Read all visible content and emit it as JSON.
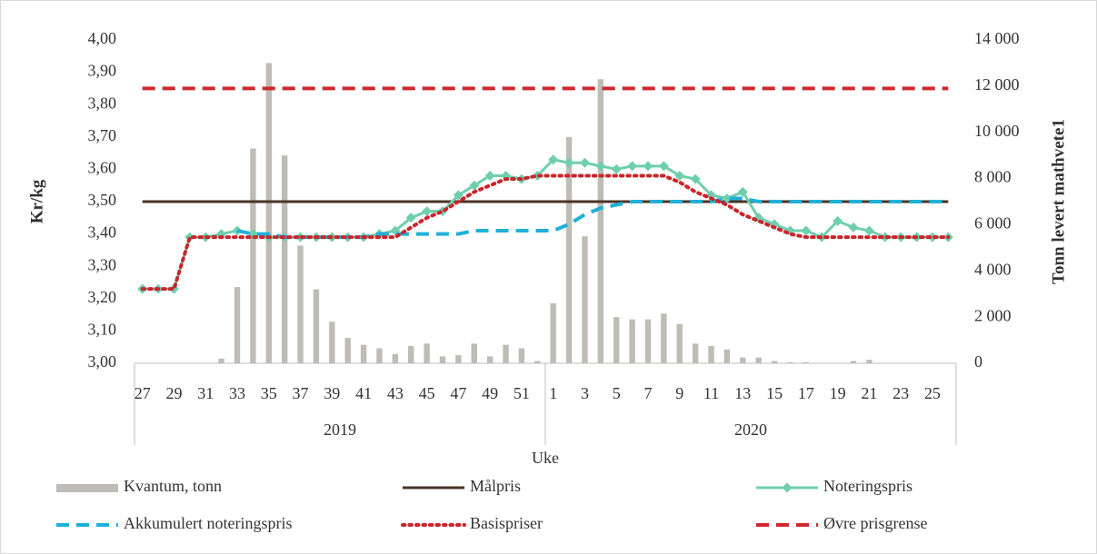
{
  "chart_data": {
    "type": "combo",
    "categories": [
      27,
      null,
      29,
      null,
      31,
      null,
      33,
      null,
      35,
      null,
      37,
      null,
      39,
      null,
      41,
      null,
      43,
      null,
      45,
      null,
      47,
      null,
      49,
      null,
      51,
      null,
      1,
      null,
      3,
      null,
      5,
      null,
      7,
      null,
      9,
      null,
      11,
      null,
      13,
      null,
      15,
      null,
      17,
      null,
      19,
      null,
      21,
      null,
      23,
      null,
      25,
      null
    ],
    "groups": [
      {
        "label": "2019",
        "count": 26
      },
      {
        "label": "2020",
        "count": 26
      }
    ],
    "x_label": "Uke",
    "y_label": "Kr/kg",
    "y2_label": "Tonn levert mathvete1",
    "ylim": [
      3.0,
      4.0
    ],
    "yticks": [
      {
        "value": 3.0,
        "label": "3,00"
      },
      {
        "value": 3.1,
        "label": "3,10"
      },
      {
        "value": 3.2,
        "label": "3,20"
      },
      {
        "value": 3.3,
        "label": "3,30"
      },
      {
        "value": 3.4,
        "label": "3,40"
      },
      {
        "value": 3.5,
        "label": "3,50"
      },
      {
        "value": 3.6,
        "label": "3,60"
      },
      {
        "value": 3.7,
        "label": "3,70"
      },
      {
        "value": 3.8,
        "label": "3,80"
      },
      {
        "value": 3.9,
        "label": "3,90"
      },
      {
        "value": 4.0,
        "label": "4,00"
      }
    ],
    "y2lim": [
      0,
      14000
    ],
    "y2ticks": [
      0,
      {
        "value": 2000,
        "label": "2 000"
      },
      {
        "value": 4000,
        "label": "4 000"
      },
      {
        "value": 6000,
        "label": "6 000"
      },
      {
        "value": 8000,
        "label": "8 000"
      },
      {
        "value": 10000,
        "label": "10 000"
      },
      {
        "value": 12000,
        "label": "12 000"
      },
      {
        "value": 14000,
        "label": "14 000"
      }
    ],
    "grid": false,
    "series": [
      {
        "name": "Kvantum, tonn",
        "type": "bar",
        "axis": "y2",
        "color": "#bfbcb5",
        "values": [
          0,
          0,
          0,
          0,
          0,
          200,
          3300,
          9300,
          13000,
          9000,
          5100,
          3200,
          1800,
          1100,
          800,
          650,
          400,
          750,
          850,
          300,
          350,
          850,
          300,
          800,
          650,
          100,
          2600,
          9800,
          5500,
          12300,
          2000,
          1900,
          1900,
          2150,
          1700,
          850,
          750,
          600,
          250,
          250,
          100,
          50,
          50,
          0,
          0,
          100,
          150,
          0,
          0,
          0,
          0,
          0
        ]
      },
      {
        "name": "Målpris",
        "type": "line",
        "dash": "solid",
        "color": "#4a3326",
        "values": [
          3.5,
          3.5,
          3.5,
          3.5,
          3.5,
          3.5,
          3.5,
          3.5,
          3.5,
          3.5,
          3.5,
          3.5,
          3.5,
          3.5,
          3.5,
          3.5,
          3.5,
          3.5,
          3.5,
          3.5,
          3.5,
          3.5,
          3.5,
          3.5,
          3.5,
          3.5,
          3.5,
          3.5,
          3.5,
          3.5,
          3.5,
          3.5,
          3.5,
          3.5,
          3.5,
          3.5,
          3.5,
          3.5,
          3.5,
          3.5,
          3.5,
          3.5,
          3.5,
          3.5,
          3.5,
          3.5,
          3.5,
          3.5,
          3.5,
          3.5,
          3.5,
          3.5
        ]
      },
      {
        "name": "Noteringspris",
        "type": "line",
        "dash": "solid",
        "marker": "diamond",
        "color": "#6fcfad",
        "values": [
          3.23,
          3.23,
          3.23,
          3.39,
          3.39,
          3.4,
          3.41,
          3.4,
          3.39,
          3.39,
          3.39,
          3.39,
          3.39,
          3.39,
          3.39,
          3.4,
          3.41,
          3.45,
          3.47,
          3.47,
          3.52,
          3.55,
          3.58,
          3.58,
          3.57,
          3.58,
          3.63,
          3.62,
          3.62,
          3.61,
          3.6,
          3.61,
          3.61,
          3.61,
          3.58,
          3.57,
          3.52,
          3.51,
          3.53,
          3.45,
          3.43,
          3.41,
          3.41,
          3.39,
          3.44,
          3.42,
          3.41,
          3.39,
          3.39,
          3.39,
          3.39,
          3.39
        ]
      },
      {
        "name": "Akkumulert noteringspris",
        "type": "line",
        "dash": "dashed",
        "color": "#1fb0d8",
        "values": [
          null,
          null,
          null,
          null,
          null,
          null,
          3.41,
          3.4,
          3.4,
          3.39,
          3.39,
          3.39,
          3.39,
          3.39,
          3.39,
          3.4,
          3.4,
          3.4,
          3.4,
          3.4,
          3.4,
          3.41,
          3.41,
          3.41,
          3.41,
          3.41,
          3.41,
          3.43,
          3.46,
          3.48,
          3.49,
          3.5,
          3.5,
          3.5,
          3.5,
          3.5,
          3.5,
          3.51,
          3.51,
          3.5,
          3.5,
          3.5,
          3.5,
          3.5,
          3.5,
          3.5,
          3.5,
          3.5,
          3.5,
          3.5,
          3.5,
          3.5
        ]
      },
      {
        "name": "Basispriser",
        "type": "line",
        "dash": "dotted",
        "color": "#c8262c",
        "values": [
          3.23,
          3.23,
          3.23,
          3.39,
          3.39,
          3.39,
          3.39,
          3.39,
          3.39,
          3.39,
          3.39,
          3.39,
          3.39,
          3.39,
          3.39,
          3.39,
          3.39,
          3.42,
          3.45,
          3.47,
          3.5,
          3.53,
          3.55,
          3.57,
          3.57,
          3.58,
          3.58,
          3.58,
          3.58,
          3.58,
          3.58,
          3.58,
          3.58,
          3.58,
          3.56,
          3.53,
          3.51,
          3.49,
          3.46,
          3.44,
          3.42,
          3.4,
          3.39,
          3.39,
          3.39,
          3.39,
          3.39,
          3.39,
          3.39,
          3.39,
          3.39,
          3.39
        ]
      },
      {
        "name": "Øvre prisgrense",
        "type": "line",
        "dash": "dashed",
        "color": "#d0282e",
        "values": [
          3.85,
          3.85,
          3.85,
          3.85,
          3.85,
          3.85,
          3.85,
          3.85,
          3.85,
          3.85,
          3.85,
          3.85,
          3.85,
          3.85,
          3.85,
          3.85,
          3.85,
          3.85,
          3.85,
          3.85,
          3.85,
          3.85,
          3.85,
          3.85,
          3.85,
          3.85,
          3.85,
          3.85,
          3.85,
          3.85,
          3.85,
          3.85,
          3.85,
          3.85,
          3.85,
          3.85,
          3.85,
          3.85,
          3.85,
          3.85,
          3.85,
          3.85,
          3.85,
          3.85,
          3.85,
          3.85,
          3.85,
          3.85,
          3.85,
          3.85,
          3.85,
          3.85
        ]
      }
    ]
  }
}
